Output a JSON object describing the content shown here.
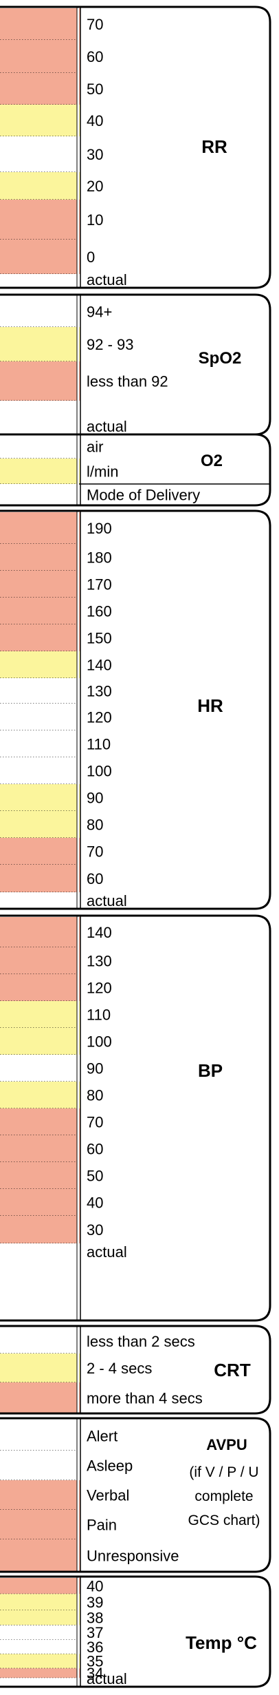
{
  "colors": {
    "red": "#f3aa94",
    "yellow": "#fbf59c",
    "white": "#ffffff",
    "border": "#000000"
  },
  "sections": [
    {
      "id": "rr",
      "title": "RR",
      "rows": [
        {
          "label": "70",
          "color": "red"
        },
        {
          "label": "60",
          "color": "red"
        },
        {
          "label": "50",
          "color": "red"
        },
        {
          "label": "40",
          "color": "yellow"
        },
        {
          "label": "30",
          "color": "white"
        },
        {
          "label": "20",
          "color": "yellow"
        },
        {
          "label": "10",
          "color": "red"
        },
        {
          "label": "0",
          "color": "red"
        },
        {
          "label": "actual",
          "color": "white"
        }
      ]
    },
    {
      "id": "spo2",
      "title": "SpO2",
      "rows": [
        {
          "label": "94+",
          "color": "white"
        },
        {
          "label": "92 - 93",
          "color": "yellow"
        },
        {
          "label": "less than 92",
          "color": "red"
        },
        {
          "label": "actual",
          "color": "white"
        }
      ]
    },
    {
      "id": "o2",
      "title": "O2",
      "rows": [
        {
          "label": "air",
          "color": "white"
        },
        {
          "label": "l/min",
          "color": "yellow"
        },
        {
          "label": "Mode of Delivery",
          "color": "white"
        }
      ]
    },
    {
      "id": "hr",
      "title": "HR",
      "rows": [
        {
          "label": "190",
          "color": "red"
        },
        {
          "label": "180",
          "color": "red"
        },
        {
          "label": "170",
          "color": "red"
        },
        {
          "label": "160",
          "color": "red"
        },
        {
          "label": "150",
          "color": "red"
        },
        {
          "label": "140",
          "color": "yellow"
        },
        {
          "label": "130",
          "color": "white"
        },
        {
          "label": "120",
          "color": "white"
        },
        {
          "label": "110",
          "color": "white"
        },
        {
          "label": "100",
          "color": "white"
        },
        {
          "label": "90",
          "color": "yellow"
        },
        {
          "label": "80",
          "color": "yellow"
        },
        {
          "label": "70",
          "color": "red"
        },
        {
          "label": "60",
          "color": "red"
        },
        {
          "label": "actual",
          "color": "white"
        }
      ]
    },
    {
      "id": "bp",
      "title": "BP",
      "rows": [
        {
          "label": "140",
          "color": "red"
        },
        {
          "label": "130",
          "color": "red"
        },
        {
          "label": "120",
          "color": "red"
        },
        {
          "label": "110",
          "color": "yellow"
        },
        {
          "label": "100",
          "color": "yellow"
        },
        {
          "label": "90",
          "color": "white"
        },
        {
          "label": "80",
          "color": "yellow"
        },
        {
          "label": "70",
          "color": "red"
        },
        {
          "label": "60",
          "color": "red"
        },
        {
          "label": "50",
          "color": "red"
        },
        {
          "label": "40",
          "color": "red"
        },
        {
          "label": "30",
          "color": "red"
        },
        {
          "label": "actual",
          "color": "white"
        }
      ]
    },
    {
      "id": "crt",
      "title": "CRT",
      "rows": [
        {
          "label": "less than 2 secs",
          "color": "white"
        },
        {
          "label": "2 - 4 secs",
          "color": "yellow"
        },
        {
          "label": "more than 4 secs",
          "color": "red"
        }
      ]
    },
    {
      "id": "avpu",
      "title": "AVPU",
      "subtitle": [
        "(if V / P / U",
        "complete",
        "GCS chart)"
      ],
      "rows": [
        {
          "label": "Alert",
          "color": "white"
        },
        {
          "label": "Asleep",
          "color": "white"
        },
        {
          "label": "Verbal",
          "color": "red"
        },
        {
          "label": "Pain",
          "color": "red"
        },
        {
          "label": "Unresponsive",
          "color": "red"
        }
      ]
    },
    {
      "id": "temp",
      "title": "Temp °C",
      "rows": [
        {
          "label": "40",
          "color": "red"
        },
        {
          "label": "39",
          "color": "yellow"
        },
        {
          "label": "38",
          "color": "yellow"
        },
        {
          "label": "37",
          "color": "white"
        },
        {
          "label": "36",
          "color": "white"
        },
        {
          "label": "35",
          "color": "yellow"
        },
        {
          "label": "34",
          "color": "red"
        },
        {
          "label": "actual",
          "color": "white"
        }
      ]
    }
  ]
}
